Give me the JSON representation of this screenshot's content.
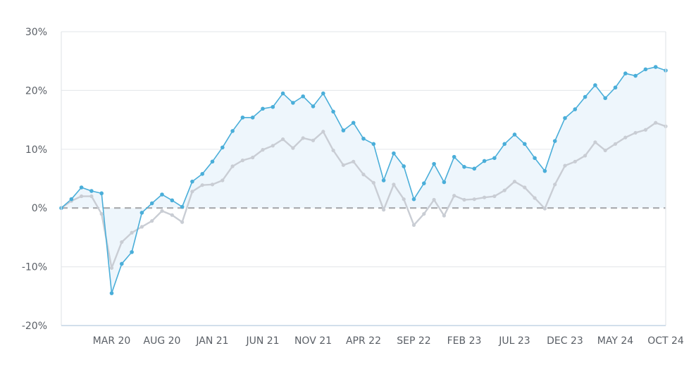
{
  "chart_data": {
    "type": "line",
    "title": "",
    "xlabel": "",
    "ylabel": "",
    "ylim": [
      -20,
      30
    ],
    "y_ticks": [
      -20,
      -10,
      0,
      10,
      20,
      30
    ],
    "y_tick_labels": [
      "-20%",
      "-10%",
      "0%",
      "10%",
      "20%",
      "30%"
    ],
    "x_tick_labels": [
      "MAR 20",
      "AUG 20",
      "JAN 21",
      "JUN 21",
      "NOV 21",
      "APR 22",
      "SEP 22",
      "FEB 23",
      "JUL 23",
      "DEC 23",
      "MAY 24",
      "OCT 24"
    ],
    "x_tick_indices": [
      5,
      10,
      15,
      20,
      25,
      30,
      35,
      40,
      45,
      50,
      55,
      60
    ],
    "grid": true,
    "legend": "none",
    "reference_line": 0,
    "series": [
      {
        "color": "#4aaed9",
        "fill": "#eef6fc",
        "values": [
          0.0,
          1.5,
          3.5,
          2.9,
          2.5,
          -14.5,
          -9.5,
          -7.5,
          -0.8,
          0.8,
          2.3,
          1.3,
          0.2,
          4.5,
          5.8,
          7.9,
          10.3,
          13.1,
          15.4,
          15.4,
          16.9,
          17.2,
          19.5,
          17.9,
          19.0,
          17.3,
          19.5,
          16.4,
          13.2,
          14.5,
          11.8,
          10.9,
          4.7,
          9.3,
          7.1,
          1.5,
          4.2,
          7.5,
          4.4,
          8.7,
          7.0,
          6.7,
          8.0,
          8.5,
          10.9,
          12.5,
          10.9,
          8.5,
          6.3,
          11.4,
          15.3,
          16.8,
          18.9,
          20.9,
          18.7,
          20.5,
          22.9,
          22.5,
          23.6,
          24.0,
          23.4
        ]
      },
      {
        "color": "#c9cdd4",
        "values": [
          0.0,
          1.2,
          2.0,
          2.0,
          -1.0,
          -10.2,
          -5.8,
          -4.2,
          -3.2,
          -2.2,
          -0.5,
          -1.2,
          -2.4,
          2.8,
          3.9,
          4.0,
          4.7,
          7.1,
          8.1,
          8.6,
          9.9,
          10.6,
          11.7,
          10.2,
          11.9,
          11.5,
          13.0,
          9.8,
          7.3,
          7.9,
          5.7,
          4.3,
          -0.3,
          4.0,
          1.5,
          -2.9,
          -1.0,
          1.4,
          -1.3,
          2.1,
          1.4,
          1.5,
          1.8,
          2.0,
          3.0,
          4.5,
          3.5,
          1.7,
          -0.1,
          4.0,
          7.2,
          7.9,
          8.9,
          11.2,
          9.8,
          10.9,
          12.0,
          12.8,
          13.3,
          14.5,
          13.9
        ]
      }
    ]
  }
}
